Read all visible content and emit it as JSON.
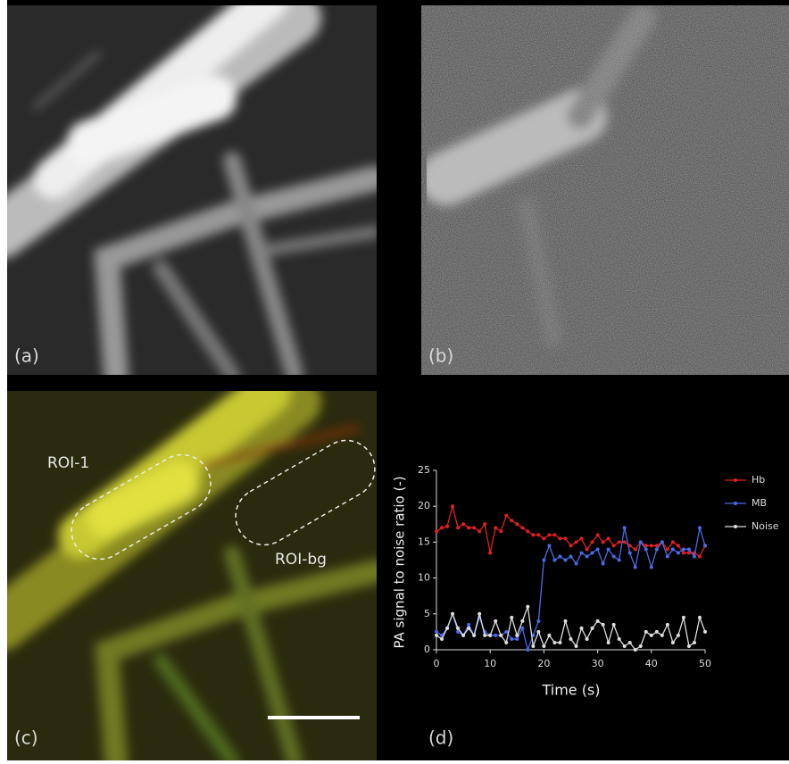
{
  "panel_labels": [
    "(a)",
    "(b)",
    "(c)",
    "(d)"
  ],
  "roi_labels": [
    "ROI-1",
    "ROI-bg"
  ],
  "chart_data": {
    "type": "line",
    "xlabel": "Time (s)",
    "ylabel": "PA signal to noise ratio (-)",
    "x": [
      0,
      1,
      2,
      3,
      4,
      5,
      6,
      7,
      8,
      9,
      10,
      11,
      12,
      13,
      14,
      15,
      16,
      17,
      18,
      19,
      20,
      21,
      22,
      23,
      24,
      25,
      26,
      27,
      28,
      29,
      30,
      31,
      32,
      33,
      34,
      35,
      36,
      37,
      38,
      39,
      40,
      41,
      42,
      43,
      44,
      45,
      46,
      47,
      48,
      49,
      50
    ],
    "xlim": [
      0,
      50
    ],
    "xticks": [
      0,
      10,
      20,
      30,
      40,
      50
    ],
    "ylim": [
      0,
      25
    ],
    "yticks": [
      0,
      5,
      10,
      15,
      20,
      25
    ],
    "legend": "right",
    "series": [
      {
        "name": "Hb",
        "color": "#e02020",
        "values": [
          16.5,
          17,
          17.2,
          20,
          17,
          17.5,
          17,
          17,
          16.5,
          17.5,
          13.5,
          17,
          16.5,
          18.7,
          18,
          17.5,
          17,
          16.5,
          16,
          16,
          15.5,
          16,
          16,
          15.5,
          15.5,
          14.5,
          15,
          15.5,
          14,
          15,
          16,
          15,
          15.5,
          14.5,
          15,
          15,
          14.5,
          14,
          15,
          14.5,
          14.5,
          14.5,
          15,
          14,
          15,
          14.5,
          13.5,
          13.5,
          13.5,
          13,
          14.5
        ]
      },
      {
        "name": "MB",
        "color": "#4a6ae8",
        "values": [
          2.5,
          2,
          3,
          5,
          2.5,
          2,
          3.5,
          2,
          4.5,
          2.5,
          2,
          2,
          2,
          2.5,
          1.5,
          1.5,
          3,
          0,
          2,
          4,
          12.5,
          14.5,
          12.5,
          13,
          12.5,
          13,
          12,
          13.5,
          13,
          13.5,
          14,
          12,
          14,
          13,
          12.5,
          17,
          13.5,
          11.5,
          15,
          14,
          11.5,
          14,
          15,
          13,
          14,
          13.5,
          14,
          14,
          13,
          17,
          14.5
        ]
      },
      {
        "name": "Noise",
        "color": "#dddddd",
        "values": [
          2,
          1.5,
          3,
          5,
          3,
          2,
          3,
          2,
          5,
          2,
          2,
          4,
          2,
          1,
          4.5,
          2,
          4,
          6,
          0.5,
          2.5,
          0.5,
          2,
          1,
          1,
          4,
          1.5,
          0.5,
          3,
          1.5,
          3,
          4,
          3.5,
          1,
          3.5,
          1.5,
          0.5,
          1,
          0,
          0.5,
          2.5,
          2,
          2.5,
          2,
          3.5,
          1,
          2,
          4.5,
          0.5,
          1,
          4.5,
          2.5
        ]
      }
    ]
  }
}
